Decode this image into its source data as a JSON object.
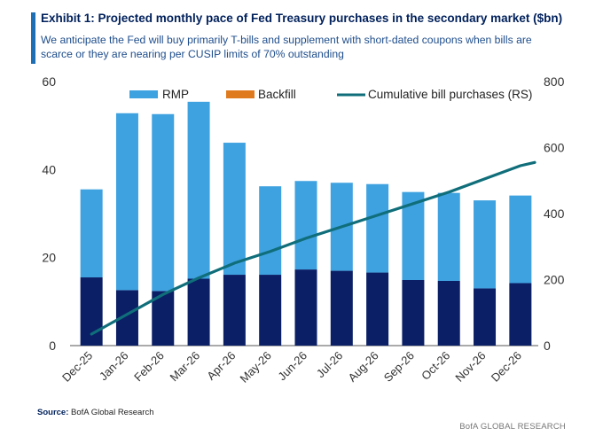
{
  "header": {
    "title": "Exhibit 1: Projected monthly pace of Fed Treasury purchases in the secondary market ($bn)",
    "subtitle": "We anticipate the Fed will buy primarily T-bills and supplement with short-dated coupons when bills are scarce or they are nearing per CUSIP limits of 70% outstanding"
  },
  "footer": {
    "source_label": "Source:",
    "source_text": " BofA Global Research",
    "brand": "BofA GLOBAL RESEARCH"
  },
  "colors": {
    "rmp_light": "#3fa2e0",
    "rmp_dark": "#0b1f66",
    "backfill": "#e07a1f",
    "line": "#0f6e7a"
  },
  "chart_data": {
    "type": "bar",
    "stacked": true,
    "categories": [
      "Dec-25",
      "Jan-26",
      "Feb-26",
      "Mar-26",
      "Apr-26",
      "May-26",
      "Jun-26",
      "Jul-26",
      "Aug-26",
      "Sep-26",
      "Oct-26",
      "Nov-26",
      "Dec-26"
    ],
    "series": [
      {
        "name": "RMP",
        "role": "bar-dark",
        "values": [
          15.5,
          12.6,
          12.4,
          15.2,
          16.1,
          16.1,
          17.3,
          17.0,
          16.6,
          14.9,
          14.7,
          13.0,
          14.2
        ]
      },
      {
        "name": "RMP",
        "role": "bar-light",
        "values": [
          20.0,
          40.2,
          40.2,
          40.2,
          30.0,
          20.1,
          20.1,
          20.0,
          20.1,
          20.0,
          20.0,
          20.0,
          19.9
        ]
      },
      {
        "name": "Backfill",
        "role": "bar",
        "values": [
          0,
          0,
          0,
          0,
          0,
          0,
          0,
          0,
          0,
          0,
          0,
          0,
          0
        ]
      },
      {
        "name": "Cumulative bill purchases (RS)",
        "role": "line",
        "axis": "right",
        "values": [
          35,
          95,
          155,
          205,
          250,
          285,
          325,
          360,
          395,
          430,
          465,
          505,
          545
        ]
      }
    ],
    "y_left": {
      "ylim": [
        0,
        60
      ],
      "ticks": [
        "0",
        "20",
        "40",
        "60"
      ]
    },
    "y_right": {
      "ylim": [
        0,
        800
      ],
      "ticks": [
        "0",
        "200",
        "400",
        "600",
        "800"
      ]
    },
    "legend": {
      "placement": "top",
      "items": [
        "RMP",
        "Backfill",
        "Cumulative bill purchases (RS)"
      ]
    },
    "grid": false
  }
}
